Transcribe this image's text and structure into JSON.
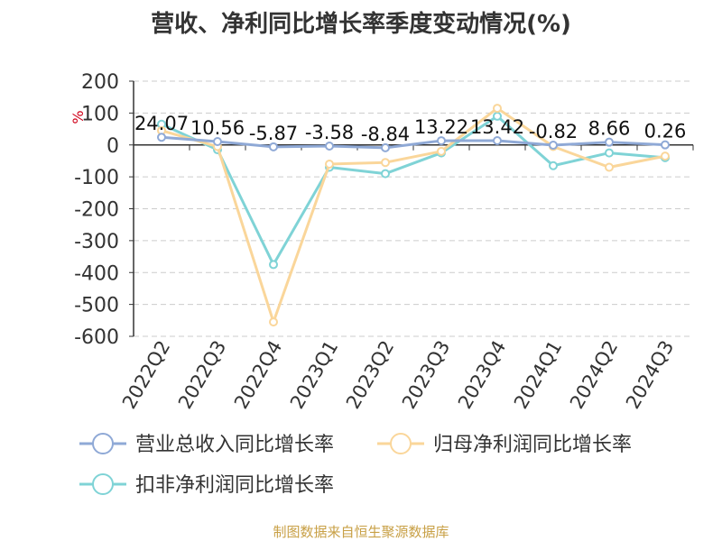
{
  "title": "营收、净利同比增长率季度变动情况(%)",
  "source": "制图数据来自恒生聚源数据库",
  "chart_data": {
    "type": "line",
    "categories": [
      "2022Q2",
      "2022Q3",
      "2022Q4",
      "2023Q1",
      "2023Q2",
      "2023Q3",
      "2023Q4",
      "2024Q1",
      "2024Q2",
      "2024Q3"
    ],
    "ylabel": "%",
    "ylim": [
      -600,
      200
    ],
    "yticks": [
      200,
      100,
      0,
      -100,
      -200,
      -300,
      -400,
      -500,
      -600
    ],
    "grid": true,
    "legend_position": "bottom",
    "series": [
      {
        "name": "营业总收入同比增长率",
        "color": "#8fa9d6",
        "values": [
          24.07,
          10.56,
          -5.87,
          -3.58,
          -8.84,
          13.22,
          13.42,
          -0.82,
          8.66,
          0.26
        ],
        "labels": [
          "24.07",
          "10.56",
          "-5.87",
          "-3.58",
          "-8.84",
          "13.22",
          "13.42",
          "-0.82",
          "8.66",
          "0.26"
        ]
      },
      {
        "name": "归母净利润同比增长率",
        "color": "#fad69a",
        "values": [
          45,
          -5,
          -555,
          -60,
          -55,
          -20,
          115,
          -5,
          -70,
          -35
        ]
      },
      {
        "name": "扣非净利润同比增长率",
        "color": "#7fd3d6",
        "values": [
          65,
          -15,
          -375,
          -70,
          -90,
          -25,
          90,
          -65,
          -25,
          -40
        ]
      }
    ]
  }
}
